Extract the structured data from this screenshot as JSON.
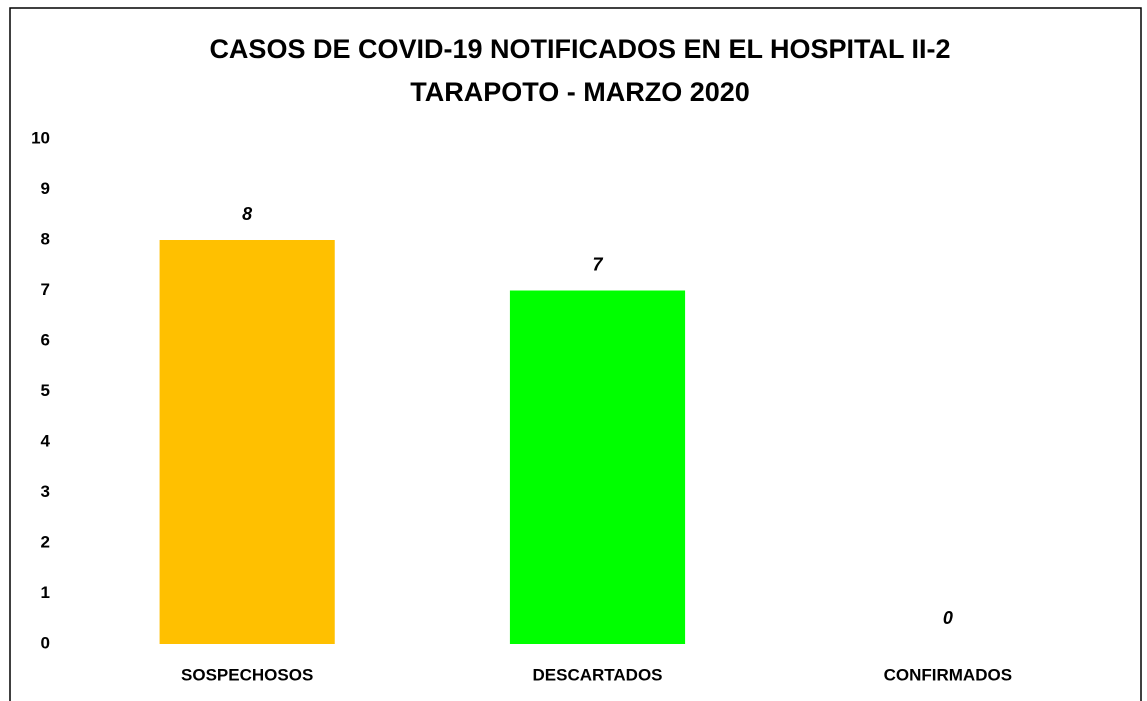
{
  "chart_data": {
    "type": "bar",
    "title": [
      "CASOS DE COVID-19 NOTIFICADOS EN EL HOSPITAL II-2",
      "TARAPOTO - MARZO 2020"
    ],
    "categories": [
      "SOSPECHOSOS",
      "DESCARTADOS",
      "CONFIRMADOS"
    ],
    "values": [
      8,
      7,
      0
    ],
    "colors": [
      "#ffc000",
      "#00ff00",
      "#ff0000"
    ],
    "ylim": [
      0,
      10
    ],
    "yticks": [
      0,
      1,
      2,
      3,
      4,
      5,
      6,
      7,
      8,
      9,
      10
    ],
    "grid": false
  }
}
